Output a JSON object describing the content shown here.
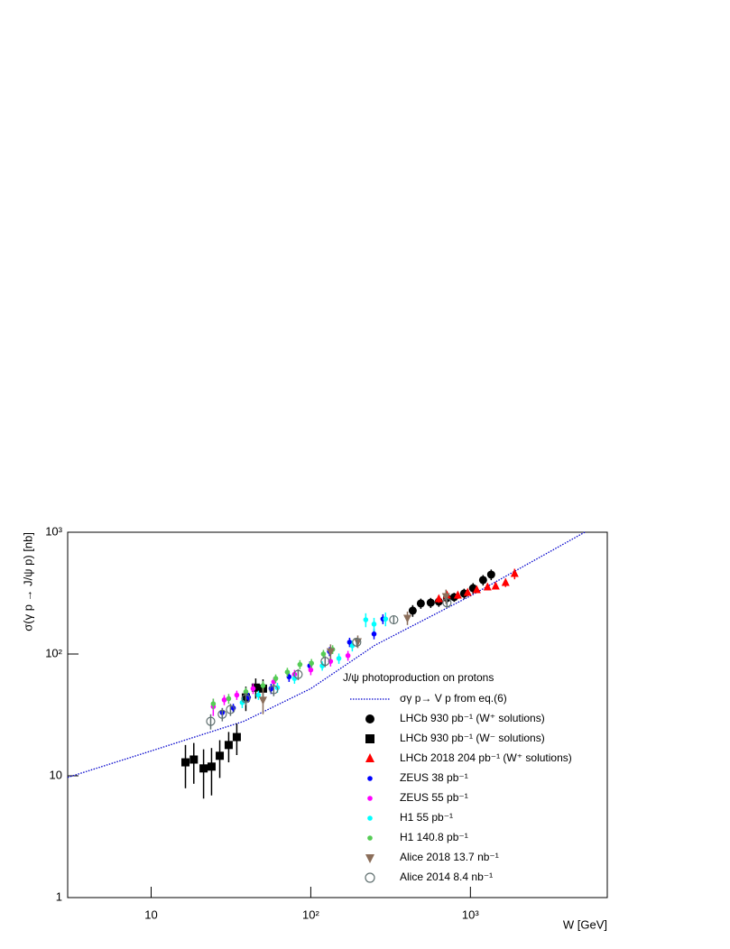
{
  "chart_data": {
    "type": "scatter",
    "x_label": "W [GeV]",
    "y_label": "σ(γ p → J/ψ p) [nb]",
    "legend_title": "J/ψ photoproduction on protons",
    "log_x": true,
    "log_y": true,
    "xlim": [
      3,
      7200
    ],
    "ylim": [
      1,
      1000
    ],
    "xticks": [
      10,
      {
        "value": 100,
        "label": "10²"
      },
      {
        "value": 1000,
        "label": "10³"
      }
    ],
    "yticks": [
      1,
      10,
      {
        "value": 100,
        "label": "10²"
      },
      {
        "value": 1000,
        "label": "10³"
      }
    ],
    "series": [
      {
        "name": "σγ p→ V p from eq.(6)",
        "color": "#0000cc",
        "marker": "dotted-line",
        "x": [
          3,
          10,
          38,
          100,
          252,
          1000,
          5200
        ],
        "values": [
          9.7,
          16,
          28,
          52,
          118,
          300,
          1000
        ]
      },
      {
        "name": "LHCb 930 pb⁻¹ (W⁺ solutions)",
        "color": "#000000",
        "marker": "circle",
        "x": [
          435,
          489,
          564,
          634,
          713,
          791,
          913,
          1039,
          1200,
          1349
        ],
        "values": [
          227,
          260,
          264,
          269,
          288,
          293,
          314,
          347,
          405,
          449
        ],
        "errors": [
          25,
          25,
          25,
          25,
          25,
          25,
          30,
          35,
          40,
          45
        ]
      },
      {
        "name": "LHCb 930 pb⁻¹ (W⁻ solutions)",
        "color": "#000000",
        "marker": "square",
        "x": [
          16.4,
          18.5,
          21.3,
          23.9,
          26.9,
          30.6,
          34.4,
          39.2,
          45.2,
          50.2
        ],
        "values": [
          12.9,
          13.6,
          11.5,
          11.9,
          14.6,
          17.9,
          20.8,
          44,
          53,
          52
        ],
        "errors": [
          5,
          5,
          5,
          5,
          5,
          5,
          6,
          10,
          10,
          10
        ]
      },
      {
        "name": "LHCb 2018 204 pb⁻¹ (W⁺ solutions)",
        "color": "#ff0000",
        "marker": "triangle-up",
        "x": [
          634,
          713,
          834,
          961,
          1096,
          1280,
          1439,
          1660,
          1892
        ],
        "values": [
          283,
          303,
          303,
          319,
          336,
          353,
          359,
          385,
          456
        ],
        "errors": [
          20,
          20,
          20,
          20,
          20,
          20,
          20,
          30,
          45
        ]
      },
      {
        "name": "ZEUS 38 pb⁻¹",
        "color": "#0000ff",
        "marker": "dot",
        "x": [
          27.9,
          32.7,
          40.7,
          56.4,
          73.1,
          98.6,
          131,
          175,
          249,
          283
        ],
        "values": [
          33,
          36,
          44,
          52,
          65,
          80,
          105,
          125,
          146,
          194
        ],
        "errors": [
          3,
          3,
          4,
          5,
          6,
          7,
          9,
          11,
          14,
          18
        ]
      },
      {
        "name": "ZEUS 55 pb⁻¹",
        "color": "#ff00ff",
        "marker": "dot",
        "x": [
          24.5,
          28.7,
          34.4,
          43.5,
          58.6,
          79.1,
          100,
          133,
          171
        ],
        "values": [
          37,
          42,
          46,
          52,
          59,
          68,
          74,
          87,
          97
        ],
        "errors": [
          6,
          4,
          4,
          5,
          5,
          6,
          7,
          8,
          9
        ]
      },
      {
        "name": "H1 55 pb⁻¹",
        "color": "#00ffff",
        "marker": "dot",
        "x": [
          37.2,
          47,
          61.8,
          79.1,
          118,
          150,
          182,
          221,
          249,
          294
        ],
        "values": [
          40,
          46,
          53,
          63,
          80,
          92,
          117,
          191,
          176,
          194
        ],
        "errors": [
          4,
          4,
          5,
          6,
          7,
          9,
          12,
          25,
          22,
          25
        ]
      },
      {
        "name": "H1 140.8 pb⁻¹",
        "color": "#55cc55",
        "marker": "dot",
        "x": [
          24.5,
          30.6,
          39.2,
          50.2,
          60.3,
          71.3,
          85.5,
          101,
          120,
          137
        ],
        "values": [
          39,
          43,
          49,
          55,
          63,
          71,
          82,
          84,
          100,
          109
        ],
        "errors": [
          4,
          4,
          4,
          5,
          5,
          6,
          7,
          7,
          8,
          9
        ]
      },
      {
        "name": "Alice 2018 13.7 nb⁻¹",
        "color": "#8b6e5a",
        "marker": "triangle-down",
        "x": [
          50.2,
          133,
          197,
          403,
          703
        ],
        "values": [
          42,
          105,
          127,
          198,
          298
        ],
        "errors": [
          10,
          15,
          15,
          25,
          40
        ]
      },
      {
        "name": "Alice 2014 8.4 nb⁻¹",
        "color": "#607070",
        "marker": "open-circle",
        "x": [
          23.6,
          27.9,
          31.4,
          39.2,
          58.6,
          83.3,
          123,
          194,
          331,
          713
        ],
        "values": [
          28,
          32,
          35,
          43,
          51,
          68,
          87,
          125,
          191,
          264
        ],
        "errors": [
          4,
          4,
          4,
          5,
          6,
          7,
          9,
          11,
          15,
          25
        ]
      }
    ]
  }
}
